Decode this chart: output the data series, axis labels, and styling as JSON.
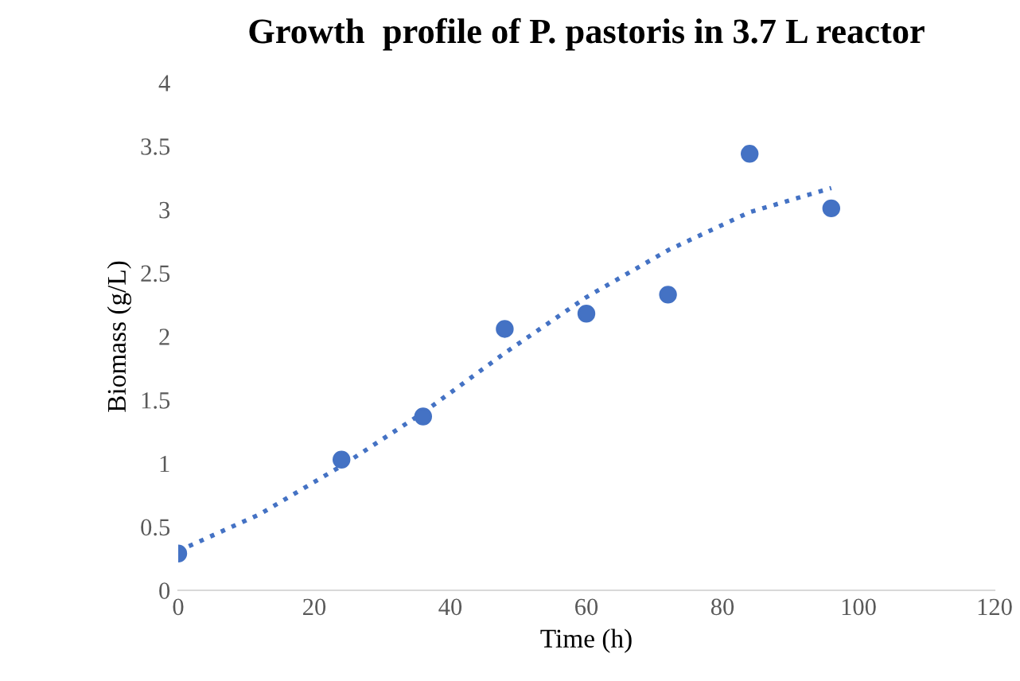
{
  "chart_data": {
    "type": "scatter",
    "title": "Growth  profile of P. pastoris in 3.7 L reactor",
    "xlabel": "Time (h)",
    "ylabel": "Biomass (g/L)",
    "series": [
      {
        "color": "#4472c4",
        "marker": "circle",
        "x": [
          0,
          24,
          36,
          48,
          60,
          72,
          84,
          96
        ],
        "values": [
          0.29,
          1.03,
          1.37,
          2.06,
          2.18,
          2.33,
          3.44,
          3.01
        ]
      },
      {
        "type": "line",
        "color": "#4472c4",
        "line_style": "dotted",
        "marker": "none",
        "x": [
          0,
          12,
          24,
          36,
          48,
          60,
          72,
          84,
          96
        ],
        "values": [
          0.31,
          0.6,
          0.98,
          1.4,
          1.87,
          2.31,
          2.68,
          2.98,
          3.17
        ]
      }
    ],
    "xlim": [
      0,
      120
    ],
    "xticks": [
      0,
      20,
      40,
      60,
      80,
      100,
      120
    ],
    "ylim": [
      0,
      4
    ],
    "yticks": [
      0,
      0.5,
      1,
      1.5,
      2,
      2.5,
      3,
      3.5,
      4
    ],
    "grid": false,
    "legend": false
  }
}
